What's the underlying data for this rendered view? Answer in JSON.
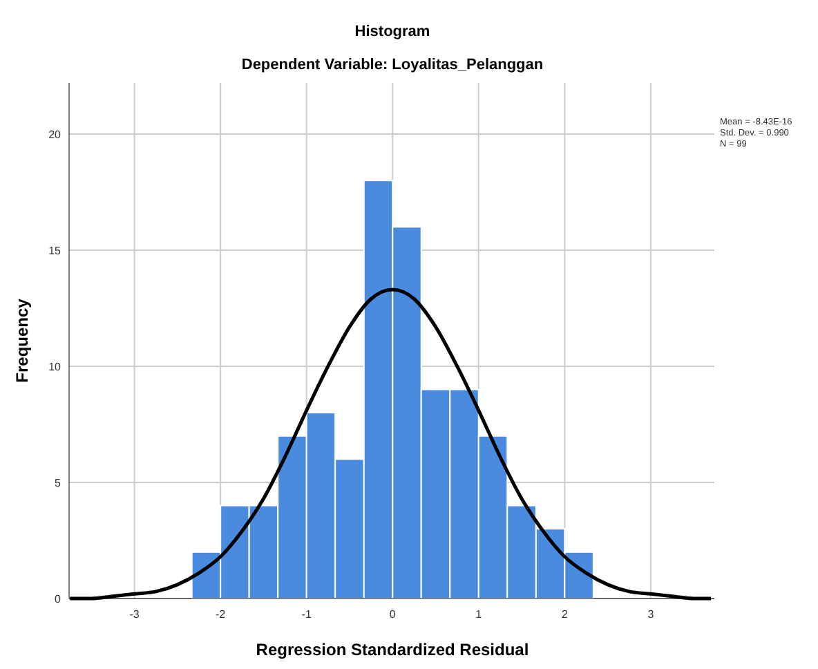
{
  "chart_data": {
    "type": "histogram",
    "title": "Histogram",
    "subtitle": "Dependent Variable: Loyalitas_Pelanggan",
    "xlabel": "Regression Standardized Residual",
    "ylabel": "Frequency",
    "bins": [
      -2.333,
      -2,
      -1.667,
      -1.333,
      -1,
      -0.667,
      -0.333,
      0,
      0.333,
      0.667,
      1,
      1.333,
      1.667,
      2,
      2.333
    ],
    "series": [
      {
        "color": "#4a8be0",
        "values": [
          2,
          4,
          4,
          7,
          8,
          6,
          18,
          16,
          9,
          9,
          7,
          4,
          3,
          2
        ]
      },
      {
        "type": "line",
        "color": "#000000",
        "x": [
          -3.75,
          -3.5,
          -3.25,
          -3,
          -2.75,
          -2.5,
          -2.25,
          -2,
          -1.75,
          -1.5,
          -1.25,
          -1,
          -0.75,
          -0.5,
          -0.25,
          0,
          0.25,
          0.5,
          0.75,
          1,
          1.25,
          1.5,
          1.75,
          2,
          2.25,
          2.5,
          2.75,
          3,
          3.25,
          3.5,
          3.7
        ],
        "values": [
          0,
          0,
          0.1,
          0.2,
          0.3,
          0.6,
          1.1,
          1.8,
          2.9,
          4.3,
          6.1,
          8.1,
          10,
          11.7,
          12.9,
          13.3,
          12.9,
          11.7,
          10,
          8.1,
          6.1,
          4.3,
          2.9,
          1.8,
          1.1,
          0.6,
          0.3,
          0.2,
          0.1,
          0,
          0
        ]
      }
    ],
    "xlim": [
      -3.76,
      3.74
    ],
    "ylim": [
      0,
      22.2
    ],
    "xticks": [
      -3,
      -2,
      -1,
      0,
      1,
      2,
      3
    ],
    "yticks": [
      0,
      5,
      10,
      15,
      20
    ],
    "grid": true,
    "marker": "none",
    "line_style": "solid",
    "annotations": [
      "Mean = -8.43E-16",
      "Std. Dev. = 0.990",
      "N = 99"
    ]
  }
}
